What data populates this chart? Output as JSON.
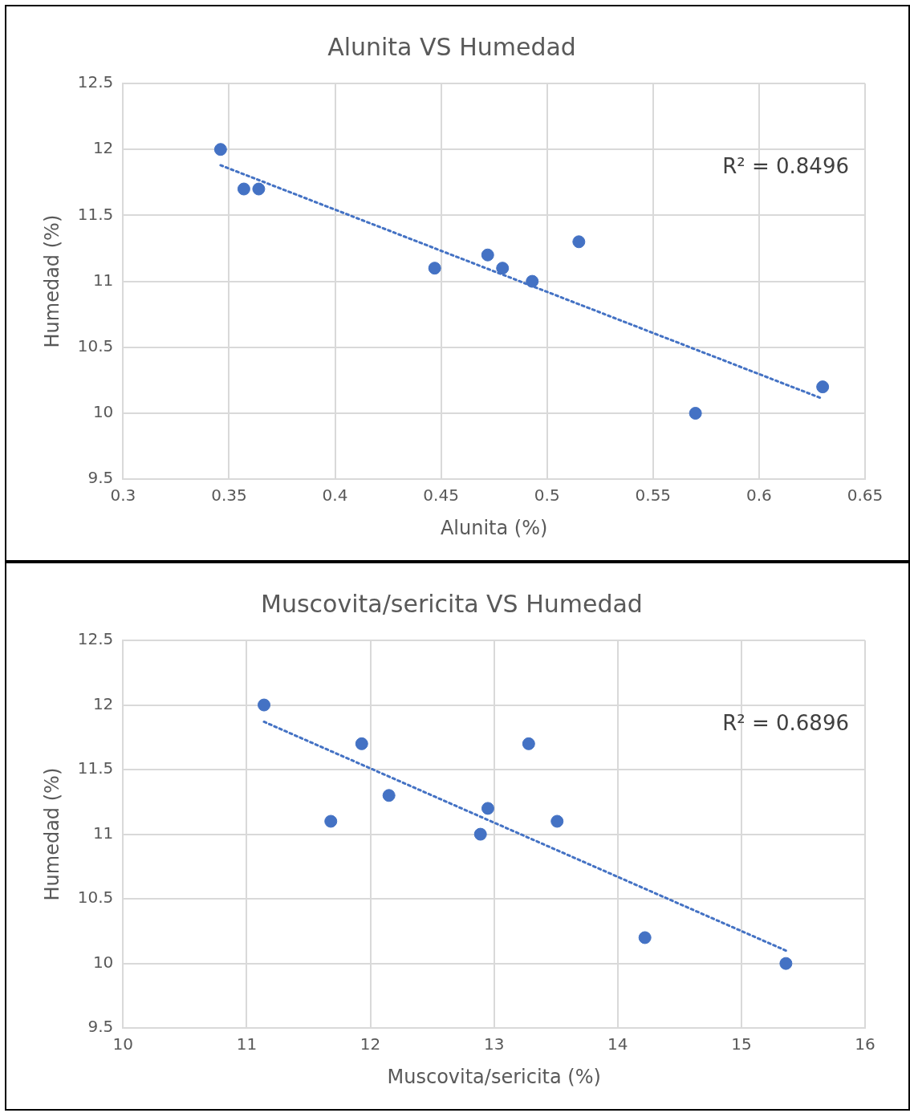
{
  "chart_data": [
    {
      "type": "scatter",
      "title": "Alunita VS Humedad",
      "xlabel": "Alunita (%)",
      "ylabel": "Humedad (%)",
      "xlim": [
        0.3,
        0.65
      ],
      "xticks": [
        0.3,
        0.35,
        0.4,
        0.45,
        0.5,
        0.55,
        0.6,
        0.65
      ],
      "ylim": [
        9.5,
        12.5
      ],
      "yticks": [
        9.5,
        10,
        10.5,
        11,
        11.5,
        12,
        12.5
      ],
      "grid": true,
      "legend": false,
      "marker": "circle",
      "annotations": [
        "R² = 0.8496"
      ],
      "series": [
        {
          "type": "scatter",
          "color": "#4472c4",
          "x": [
            0.346,
            0.357,
            0.364,
            0.447,
            0.472,
            0.479,
            0.493,
            0.515,
            0.57,
            0.63
          ],
          "values": [
            12,
            11.7,
            11.7,
            11.1,
            11.2,
            11.1,
            11,
            11.3,
            10,
            10.2
          ]
        },
        {
          "type": "line",
          "color": "#4472c4",
          "line_style": "dotted",
          "marker": "none",
          "x": [
            0.346,
            0.63
          ],
          "values": [
            11.88,
            10.11
          ]
        }
      ]
    },
    {
      "type": "scatter",
      "title": "Muscovita/sericita VS Humedad",
      "xlabel": "Muscovita/sericita (%)",
      "ylabel": "Humedad (%)",
      "xlim": [
        10,
        16
      ],
      "xticks": [
        10,
        11,
        12,
        13,
        14,
        15,
        16
      ],
      "ylim": [
        9.5,
        12.5
      ],
      "yticks": [
        9.5,
        10,
        10.5,
        11,
        11.5,
        12,
        12.5
      ],
      "grid": true,
      "legend": false,
      "marker": "circle",
      "annotations": [
        "R² = 0.6896"
      ],
      "series": [
        {
          "type": "scatter",
          "color": "#4472c4",
          "x": [
            11.14,
            11.93,
            11.68,
            12.15,
            12.89,
            12.95,
            13.28,
            13.51,
            14.22,
            15.36
          ],
          "values": [
            12,
            11.7,
            11.1,
            11.3,
            11,
            11.2,
            11.7,
            11.1,
            10.2,
            10
          ]
        },
        {
          "type": "line",
          "color": "#4472c4",
          "line_style": "dotted",
          "marker": "none",
          "x": [
            11.14,
            15.36
          ],
          "values": [
            11.87,
            10.1
          ]
        }
      ]
    }
  ]
}
